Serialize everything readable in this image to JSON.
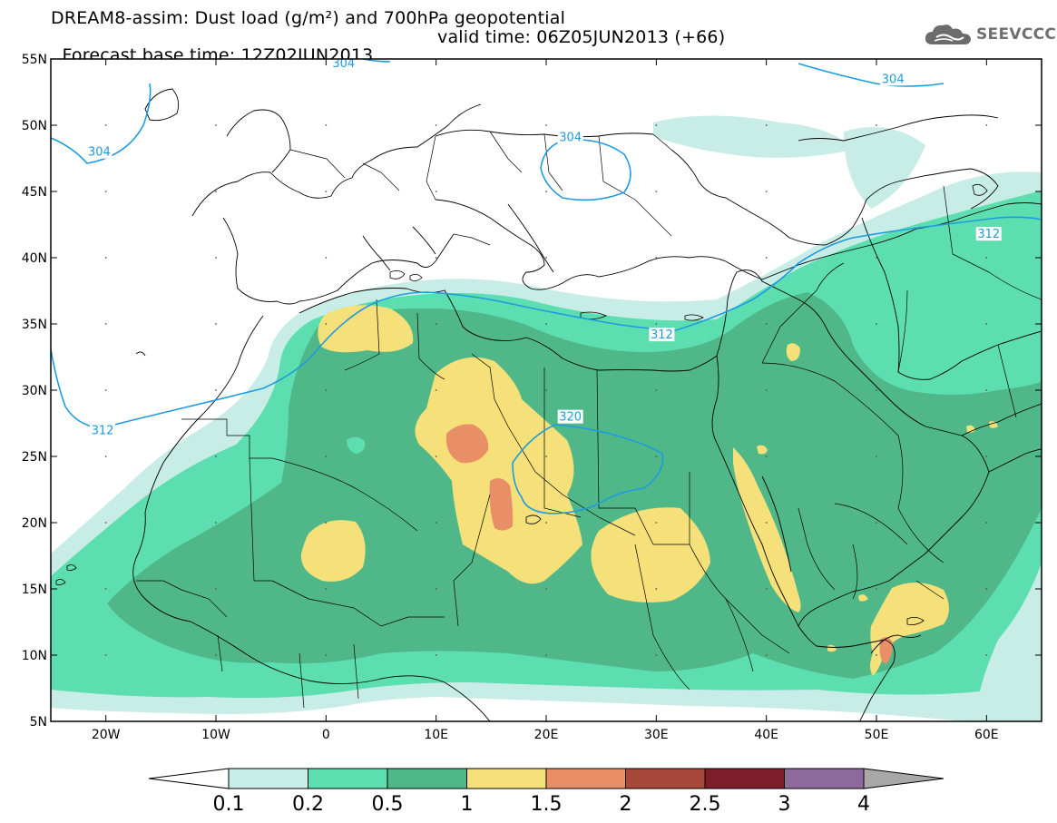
{
  "header": {
    "title_line1": "DREAM8-assim: Dust load (g/m²) and 700hPa geopotential",
    "forecast_base": "Forecast base time: 12Z02JUN2013",
    "valid_time": "valid time: 06Z05JUN2013 (+66)"
  },
  "logo": {
    "text": "SEEVCCC",
    "icon": "cloud-icon"
  },
  "map": {
    "lon_range": [
      -25,
      65
    ],
    "lat_range": [
      5,
      55
    ],
    "lon_ticks": [
      {
        "value": -20,
        "label": "20W"
      },
      {
        "value": -10,
        "label": "10W"
      },
      {
        "value": 0,
        "label": "0"
      },
      {
        "value": 10,
        "label": "10E"
      },
      {
        "value": 20,
        "label": "20E"
      },
      {
        "value": 30,
        "label": "30E"
      },
      {
        "value": 40,
        "label": "40E"
      },
      {
        "value": 50,
        "label": "50E"
      },
      {
        "value": 60,
        "label": "60E"
      }
    ],
    "lat_ticks": [
      {
        "value": 55,
        "label": "55N"
      },
      {
        "value": 50,
        "label": "50N"
      },
      {
        "value": 45,
        "label": "45N"
      },
      {
        "value": 40,
        "label": "40N"
      },
      {
        "value": 35,
        "label": "35N"
      },
      {
        "value": 30,
        "label": "30N"
      },
      {
        "value": 25,
        "label": "25N"
      },
      {
        "value": 20,
        "label": "20N"
      },
      {
        "value": 15,
        "label": "15N"
      },
      {
        "value": 10,
        "label": "10N"
      },
      {
        "value": 5,
        "label": "5N"
      }
    ],
    "contour_labels": [
      {
        "text": "304",
        "lon": 1.6,
        "lat": 54.6
      },
      {
        "text": "304",
        "lon": -20.6,
        "lat": 47.9
      },
      {
        "text": "304",
        "lon": 22.2,
        "lat": 49.0
      },
      {
        "text": "304",
        "lon": 51.5,
        "lat": 53.4
      },
      {
        "text": "312",
        "lon": 60.2,
        "lat": 41.7
      },
      {
        "text": "312",
        "lon": 30.5,
        "lat": 34.1
      },
      {
        "text": "312",
        "lon": -20.3,
        "lat": 26.9
      },
      {
        "text": "320",
        "lon": 22.2,
        "lat": 27.9
      }
    ]
  },
  "colorbar": {
    "levels": [
      "0.1",
      "0.2",
      "0.5",
      "1",
      "1.5",
      "2",
      "2.5",
      "3",
      "4"
    ],
    "colors": {
      "below": "#ffffff",
      "bins": [
        "#c8ede6",
        "#5cdeb0",
        "#50b888",
        "#f5e07a",
        "#e88f68",
        "#a8483a",
        "#7c1e2a",
        "#8e6a9c"
      ],
      "above": "#a8a8a8"
    }
  }
}
